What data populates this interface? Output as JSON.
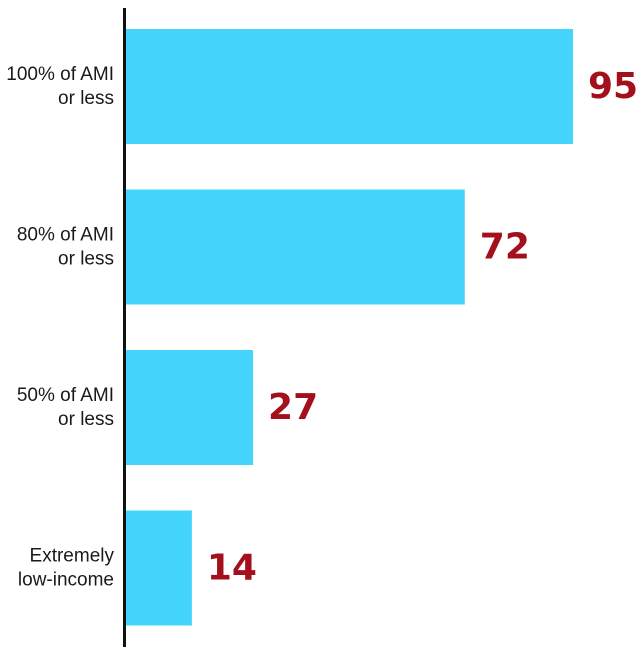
{
  "chart_data": {
    "type": "bar",
    "orientation": "horizontal",
    "categories": [
      [
        "100% of AMI",
        "or less"
      ],
      [
        "80% of AMI",
        "or less"
      ],
      [
        "50% of AMI",
        "or less"
      ],
      [
        "Extremely",
        "low-income"
      ]
    ],
    "values": [
      95,
      72,
      27,
      14
    ],
    "value_labels": [
      "95",
      "72",
      "27",
      "14"
    ],
    "xlim": [
      0,
      95
    ],
    "grid": false,
    "colors": {
      "bar": "#45d4fb",
      "value_label": "#a3101c",
      "axis": "#111111"
    }
  }
}
